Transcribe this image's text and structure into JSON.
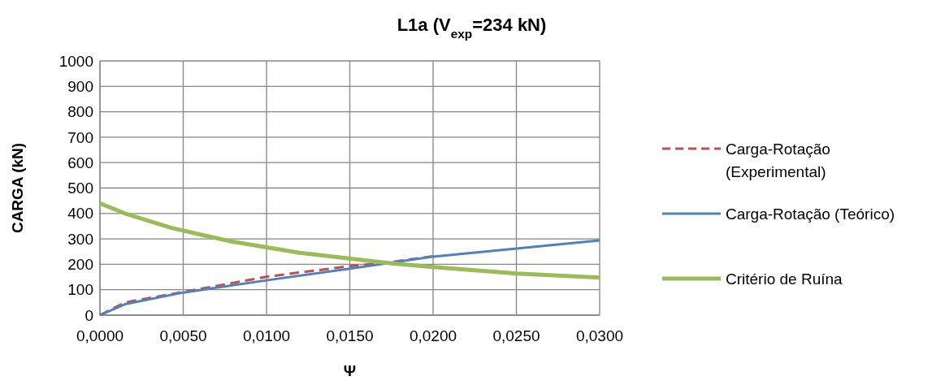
{
  "chart_data": {
    "type": "line",
    "title": "L1a  (V$_{exp}$=234 kN)",
    "xlabel": "Ψ",
    "ylabel": "CARGA (kN)",
    "xlim": [
      0,
      0.03
    ],
    "xticks": [
      {
        "value": 0,
        "label": "0,0000"
      },
      {
        "value": 0.005,
        "label": "0,0050"
      },
      {
        "value": 0.01,
        "label": "0,0100"
      },
      {
        "value": 0.015,
        "label": "0,0150"
      },
      {
        "value": 0.02,
        "label": "0,0200"
      },
      {
        "value": 0.025,
        "label": "0,0250"
      },
      {
        "value": 0.03,
        "label": "0,0300"
      }
    ],
    "ylim": [
      0,
      1000
    ],
    "yticks": [
      0,
      100,
      200,
      300,
      400,
      500,
      600,
      700,
      800,
      900,
      1000
    ],
    "grid": true,
    "legend": "right",
    "series": [
      {
        "name": "Carga-Rotação (Experimental)",
        "color": "#c0504d",
        "line_style": "dashed",
        "x": [
          0,
          0.0015,
          0.005,
          0.01,
          0.015,
          0.0175,
          0.02
        ],
        "values": [
          0,
          50,
          91,
          151,
          193,
          209,
          232
        ]
      },
      {
        "name": "Carga-Rotação (Teórico)",
        "color": "#4f81bd",
        "line_style": "solid",
        "x": [
          0,
          0.0015,
          0.005,
          0.01,
          0.015,
          0.02,
          0.025,
          0.03
        ],
        "values": [
          0,
          43,
          89,
          137,
          183,
          230,
          262,
          294
        ]
      },
      {
        "name": "Critério de Ruína",
        "color": "#9bbb59",
        "line_style": "solid",
        "x": [
          0,
          0.0015,
          0.0043,
          0.0078,
          0.012,
          0.0175,
          0.02,
          0.025,
          0.03
        ],
        "values": [
          440,
          400,
          343,
          291,
          245,
          204,
          189,
          164,
          148
        ]
      }
    ]
  }
}
